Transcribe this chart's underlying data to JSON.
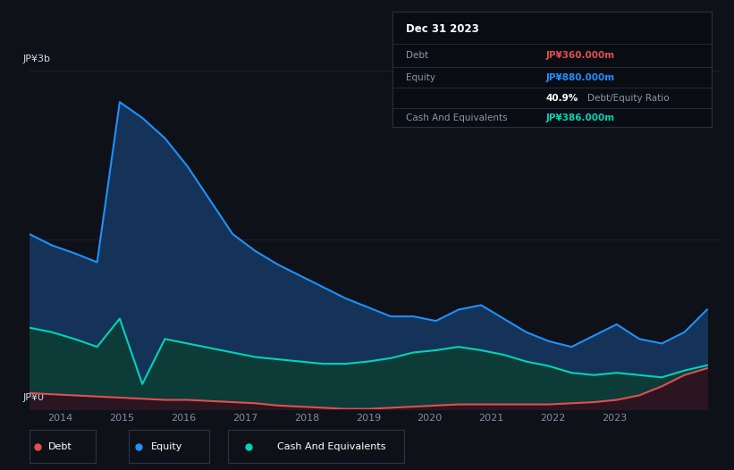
{
  "background_color": "#0e1117",
  "plot_bg_color": "#0e1117",
  "ylabel_top": "JP¥3b",
  "ylabel_bottom": "JP¥0",
  "equity_color": "#1e90ff",
  "equity_fill": "#153358",
  "cash_color": "#00d4b8",
  "cash_fill": "#0d3b38",
  "debt_color": "#e05050",
  "debt_fill": "#2a1520",
  "grid_color": "#1e2535",
  "info_box_bg": "#090c13",
  "info_box_border": "#2a3040",
  "info_date": "Dec 31 2023",
  "info_debt_label": "Debt",
  "info_debt_value": "JP¥360.000m",
  "info_equity_label": "Equity",
  "info_equity_value": "JP¥880.000m",
  "info_ratio": "40.9%",
  "info_ratio_label": "Debt/Equity Ratio",
  "info_cash_label": "Cash And Equivalents",
  "info_cash_value": "JP¥386.000m",
  "equity_data": [
    1.55,
    1.45,
    1.38,
    1.3,
    2.72,
    2.58,
    2.4,
    2.15,
    1.85,
    1.55,
    1.4,
    1.28,
    1.18,
    1.08,
    0.98,
    0.9,
    0.82,
    0.82,
    0.78,
    0.88,
    0.92,
    0.8,
    0.68,
    0.6,
    0.55,
    0.65,
    0.75,
    0.62,
    0.58,
    0.68,
    0.88
  ],
  "cash_data": [
    0.72,
    0.68,
    0.62,
    0.55,
    0.8,
    0.22,
    0.62,
    0.58,
    0.54,
    0.5,
    0.46,
    0.44,
    0.42,
    0.4,
    0.4,
    0.42,
    0.45,
    0.5,
    0.52,
    0.55,
    0.52,
    0.48,
    0.42,
    0.38,
    0.32,
    0.3,
    0.32,
    0.3,
    0.28,
    0.34,
    0.386
  ],
  "debt_data": [
    0.14,
    0.13,
    0.12,
    0.11,
    0.1,
    0.09,
    0.08,
    0.08,
    0.07,
    0.06,
    0.05,
    0.03,
    0.02,
    0.01,
    0.0,
    0.0,
    0.01,
    0.02,
    0.03,
    0.04,
    0.04,
    0.04,
    0.04,
    0.04,
    0.05,
    0.06,
    0.08,
    0.12,
    0.2,
    0.3,
    0.36
  ],
  "xmin": 2013.0,
  "xmax": 2024.2,
  "ymin": 0.0,
  "ymax": 3.0,
  "grid_y1": 1.5,
  "grid_y2": 3.0,
  "x_tick_positions": [
    2013.5,
    2014.5,
    2015.5,
    2016.5,
    2017.5,
    2018.5,
    2019.5,
    2020.5,
    2021.5,
    2022.5,
    2023.5
  ],
  "x_tick_labels": [
    "2014",
    "2015",
    "2016",
    "2017",
    "2018",
    "2019",
    "2020",
    "2021",
    "2022",
    "2023",
    ""
  ],
  "legend_items": [
    {
      "label": "Debt",
      "color": "#e05050"
    },
    {
      "label": "Equity",
      "color": "#1e90ff"
    },
    {
      "label": "Cash And Equivalents",
      "color": "#00d4b8"
    }
  ]
}
